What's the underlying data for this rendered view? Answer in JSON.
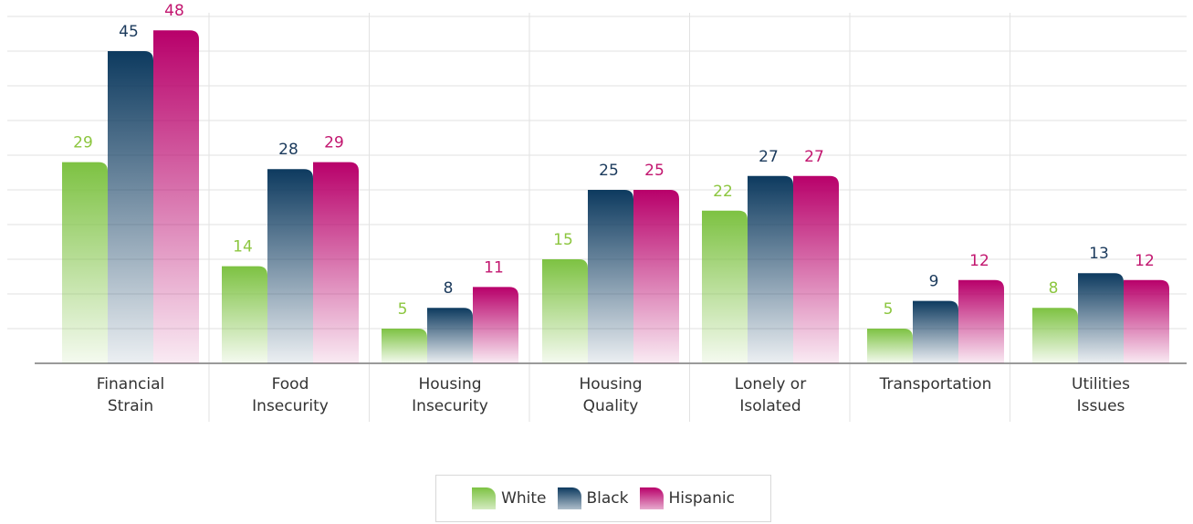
{
  "chart_data": {
    "type": "bar",
    "categories": [
      [
        "Financial",
        "Strain"
      ],
      [
        "Food",
        "Insecurity"
      ],
      [
        "Housing",
        "Insecurity"
      ],
      [
        "Housing",
        "Quality"
      ],
      [
        "Lonely or",
        "Isolated"
      ],
      [
        "Transportation"
      ],
      [
        "Utilities",
        "Issues"
      ]
    ],
    "series": [
      {
        "name": "White",
        "color": "#7dc242",
        "label_color": "#8cc63f",
        "values": [
          29,
          14,
          5,
          15,
          22,
          5,
          8
        ]
      },
      {
        "name": "Black",
        "color": "#0d3a5f",
        "label_color": "#1b3a5c",
        "values": [
          45,
          28,
          8,
          25,
          27,
          9,
          13
        ]
      },
      {
        "name": "Hispanic",
        "color": "#b8006a",
        "label_color": "#c2166f",
        "values": [
          48,
          29,
          11,
          25,
          27,
          12,
          12
        ]
      }
    ],
    "ylim": [
      0,
      50
    ],
    "grid": true,
    "legend_position": "bottom-center",
    "title": "",
    "xlabel": "",
    "ylabel": ""
  }
}
